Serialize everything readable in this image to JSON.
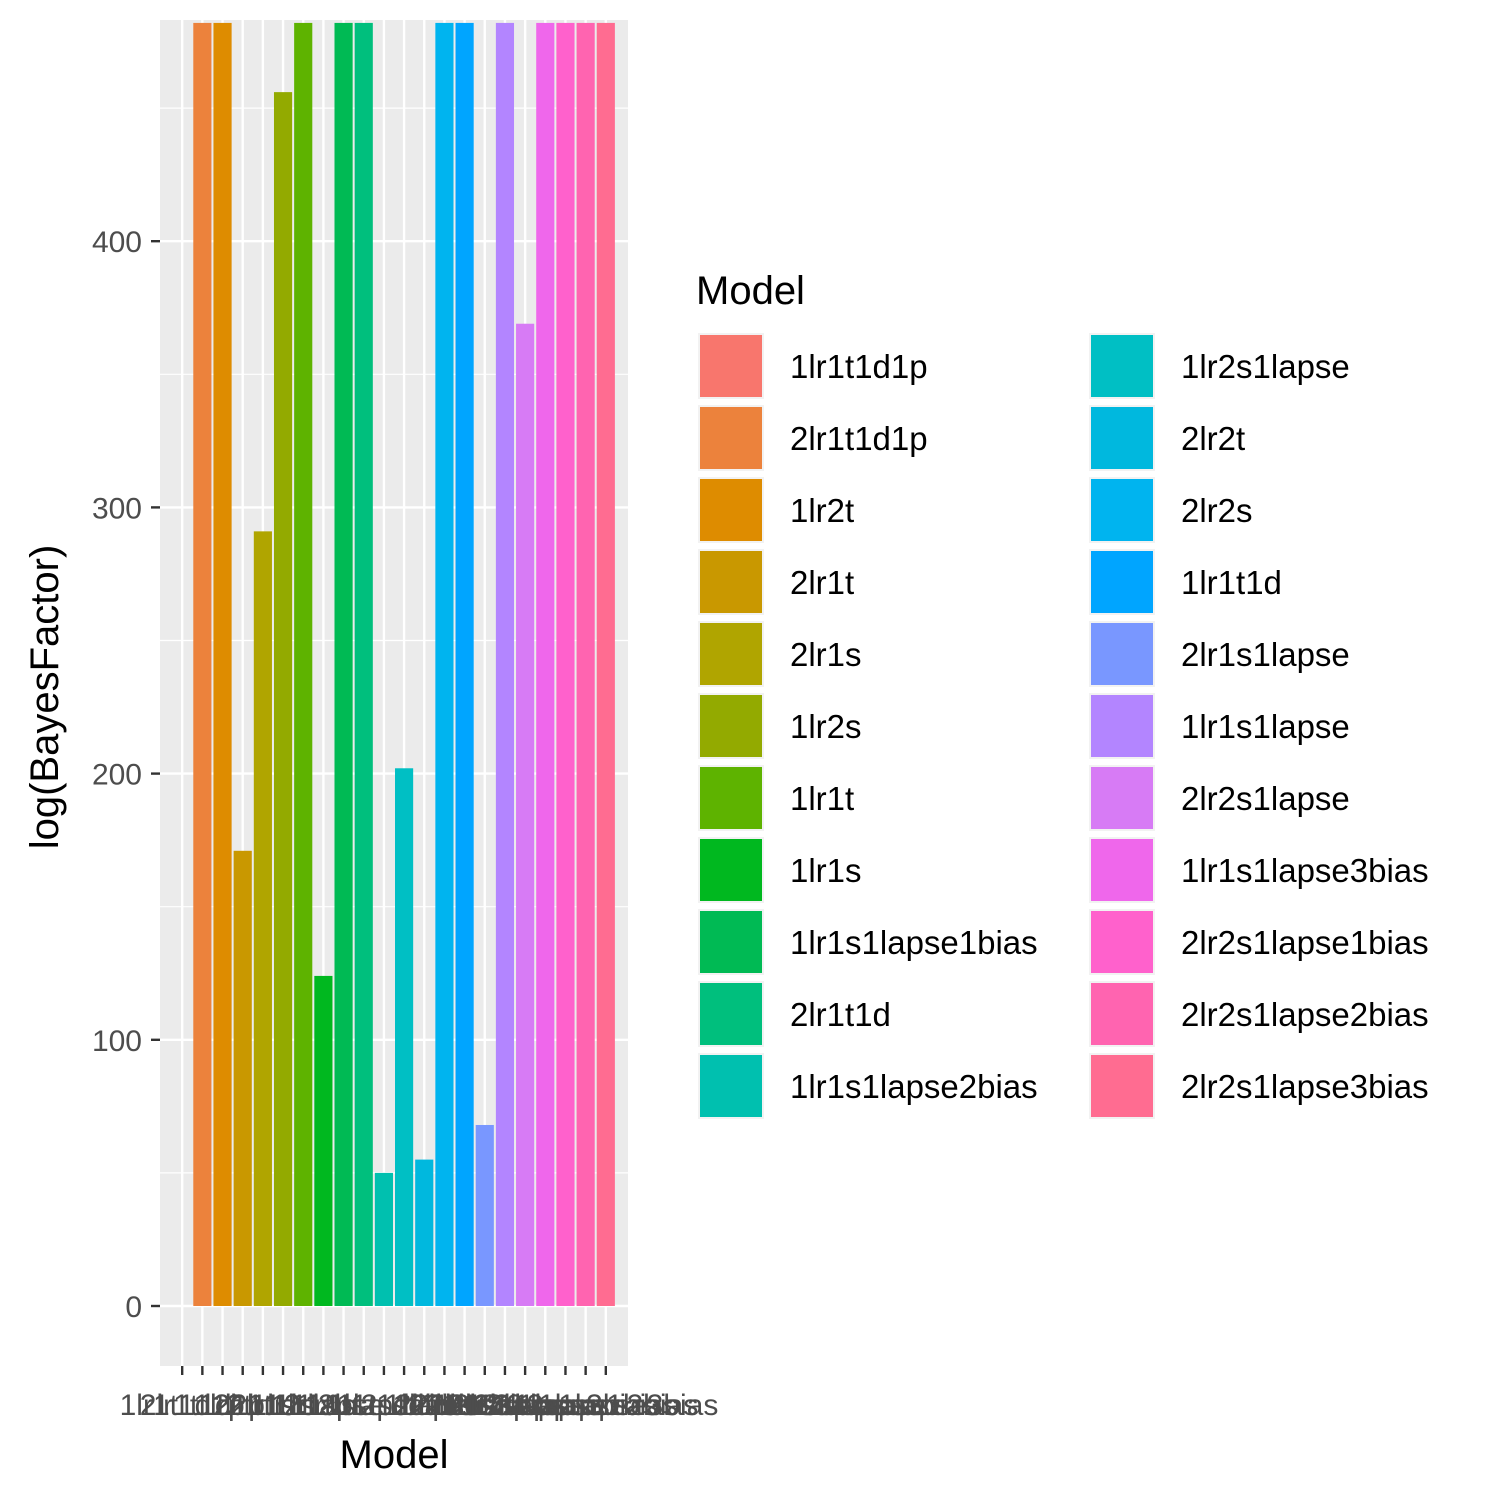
{
  "chart_data": {
    "type": "bar",
    "xlabel": "Model",
    "ylabel": "log(BayesFactor)",
    "ylim": [
      -20,
      482
    ],
    "y_ticks": [
      0,
      100,
      200,
      300,
      400
    ],
    "grid": true,
    "legend_title": "Model",
    "legend_placement": "right",
    "categories": [
      "1lr1t1d1p",
      "2lr1t1d1p",
      "1lr2t",
      "2lr1t",
      "2lr1s",
      "1lr2s",
      "1lr1t",
      "1lr1s",
      "1lr1s1lapse1bias",
      "2lr1t1d",
      "1lr1s1lapse2bias",
      "1lr2s1lapse",
      "2lr2t",
      "2lr2s",
      "1lr1t1d",
      "2lr1s1lapse",
      "1lr1s1lapse",
      "2lr2s1lapse",
      "1lr1s1lapse3bias",
      "2lr2s1lapse1bias",
      "2lr2s1lapse2bias",
      "2lr2s1lapse3bias"
    ],
    "values": [
      0,
      482,
      482,
      171,
      291,
      456,
      482,
      124,
      482,
      482,
      50,
      202,
      55,
      482,
      482,
      68,
      482,
      369,
      482,
      482,
      482,
      482
    ],
    "colors": [
      "#F8766D",
      "#EC823C",
      "#DE8C00",
      "#C99800",
      "#B0A500",
      "#93AA00",
      "#5EB300",
      "#00B81F",
      "#00BA54",
      "#00BF7D",
      "#00C0AF",
      "#00BFC4",
      "#00B8DE",
      "#00B4EF",
      "#00A5FF",
      "#7997FF",
      "#B385FF",
      "#D77BF5",
      "#EF67EB",
      "#FF61CC",
      "#FF64B0",
      "#FF6C91"
    ]
  }
}
